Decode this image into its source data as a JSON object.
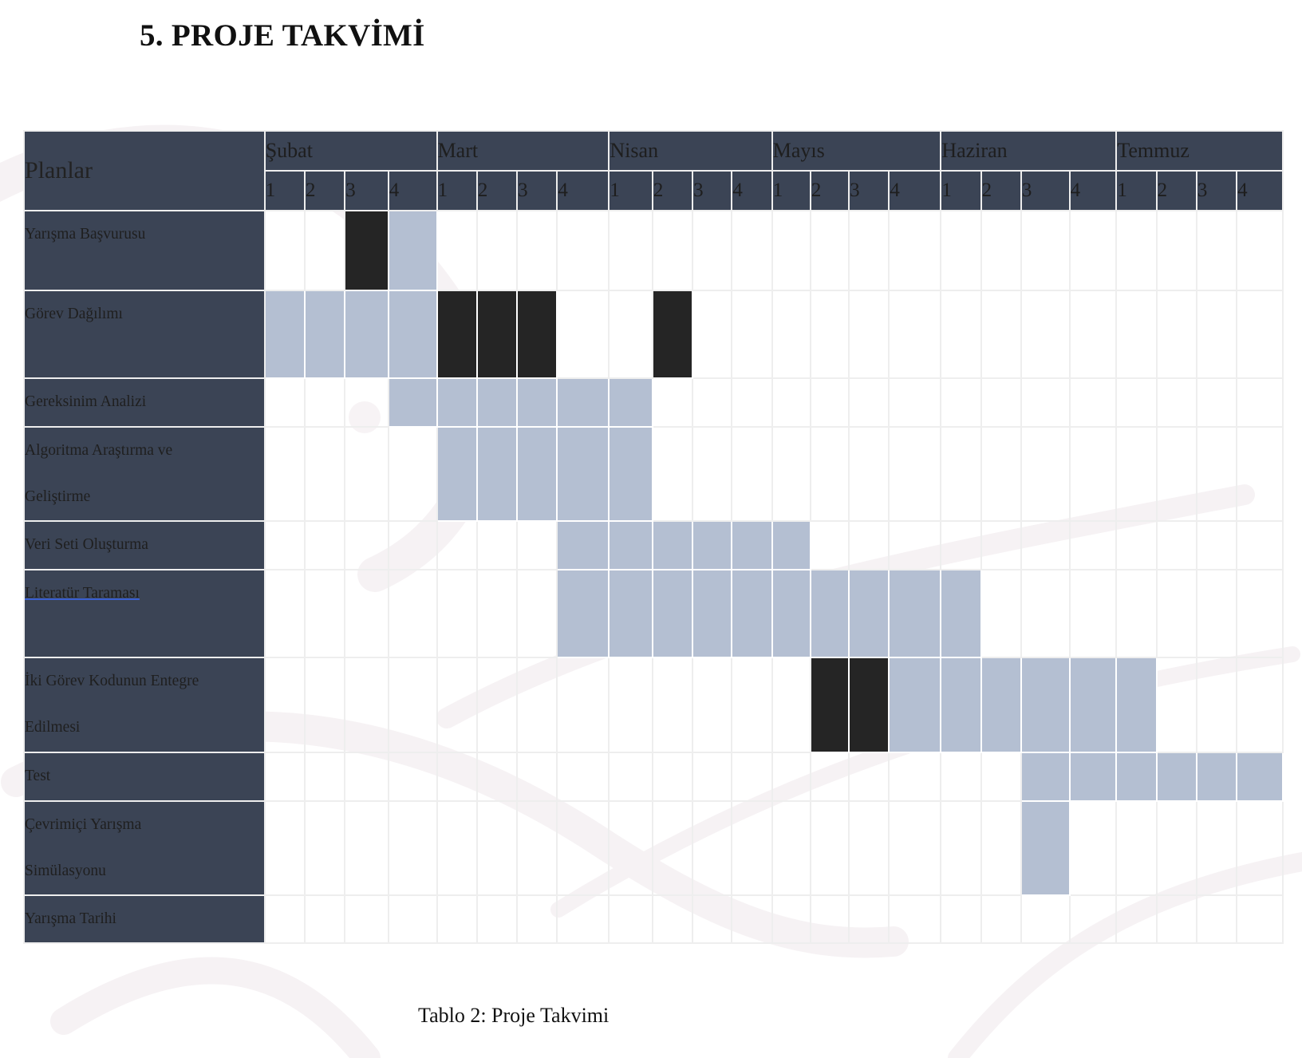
{
  "title": "5. PROJE TAKVİMİ",
  "table": {
    "corner_header": "Planlar",
    "months": [
      "Şubat",
      "Mart",
      "Nisan",
      "Mayıs",
      "Haziran",
      "Temmuz"
    ],
    "weeks": [
      "1",
      "2",
      "3",
      "4"
    ],
    "legend_note": "cell states: 0 = empty, 1 = light fill, 2 = dark fill",
    "colors": {
      "header": "#3b4455",
      "light": "#b4bfd2",
      "dark": "#252525"
    },
    "tasks": [
      {
        "label": "Yarışma Başvurusu",
        "lines": 1,
        "row_height": 100,
        "cells": [
          0,
          0,
          2,
          1,
          0,
          0,
          0,
          0,
          0,
          0,
          0,
          0,
          0,
          0,
          0,
          0,
          0,
          0,
          0,
          0,
          0,
          0,
          0,
          0
        ]
      },
      {
        "label": "Görev Dağılımı",
        "lines": 1,
        "row_height": 110,
        "cells": [
          1,
          1,
          1,
          1,
          2,
          2,
          2,
          0,
          0,
          2,
          0,
          0,
          0,
          0,
          0,
          0,
          0,
          0,
          0,
          0,
          0,
          0,
          0,
          0
        ]
      },
      {
        "label": "Gereksinim Analizi",
        "lines": 1,
        "row_height": 61,
        "cells": [
          0,
          0,
          0,
          1,
          1,
          1,
          1,
          1,
          1,
          0,
          0,
          0,
          0,
          0,
          0,
          0,
          0,
          0,
          0,
          0,
          0,
          0,
          0,
          0
        ]
      },
      {
        "label": "Algoritma Araştırma ve\nGeliştirme",
        "lines": 2,
        "row_height": 118,
        "cells": [
          0,
          0,
          0,
          0,
          1,
          1,
          1,
          1,
          1,
          0,
          0,
          0,
          0,
          0,
          0,
          0,
          0,
          0,
          0,
          0,
          0,
          0,
          0,
          0
        ]
      },
      {
        "label": "Veri Seti Oluşturma",
        "lines": 1,
        "row_height": 61,
        "cells": [
          0,
          0,
          0,
          0,
          0,
          0,
          0,
          1,
          1,
          1,
          1,
          1,
          1,
          0,
          0,
          0,
          0,
          0,
          0,
          0,
          0,
          0,
          0,
          0
        ]
      },
      {
        "label": "Literatür  Taraması",
        "lines": 1,
        "row_height": 110,
        "underlined": true,
        "cells": [
          0,
          0,
          0,
          0,
          0,
          0,
          0,
          1,
          1,
          1,
          1,
          1,
          1,
          1,
          1,
          1,
          1,
          0,
          0,
          0,
          0,
          0,
          0,
          0
        ]
      },
      {
        "label": "İki Görev Kodunun Entegre\nEdilmesi",
        "lines": 2,
        "row_height": 119,
        "cells": [
          0,
          0,
          0,
          0,
          0,
          0,
          0,
          0,
          0,
          0,
          0,
          0,
          0,
          2,
          2,
          1,
          1,
          1,
          1,
          1,
          1,
          0,
          0,
          0
        ]
      },
      {
        "label": "Test",
        "lines": 1,
        "row_height": 61,
        "cells": [
          0,
          0,
          0,
          0,
          0,
          0,
          0,
          0,
          0,
          0,
          0,
          0,
          0,
          0,
          0,
          0,
          0,
          0,
          1,
          1,
          1,
          1,
          1,
          1
        ]
      },
      {
        "label": "Çevrimiçi Yarışma\nSimülasyonu",
        "lines": 2,
        "row_height": 118,
        "cells": [
          0,
          0,
          0,
          0,
          0,
          0,
          0,
          0,
          0,
          0,
          0,
          0,
          0,
          0,
          0,
          0,
          0,
          0,
          1,
          0,
          0,
          0,
          0,
          0
        ]
      },
      {
        "label": "Yarışma Tarihi",
        "lines": 1,
        "row_height": 58,
        "cells": [
          0,
          0,
          0,
          0,
          0,
          0,
          0,
          0,
          0,
          0,
          0,
          0,
          0,
          0,
          0,
          0,
          0,
          0,
          0,
          0,
          0,
          0,
          0,
          0
        ]
      }
    ]
  },
  "caption": "Tablo 2: Proje Takvimi"
}
